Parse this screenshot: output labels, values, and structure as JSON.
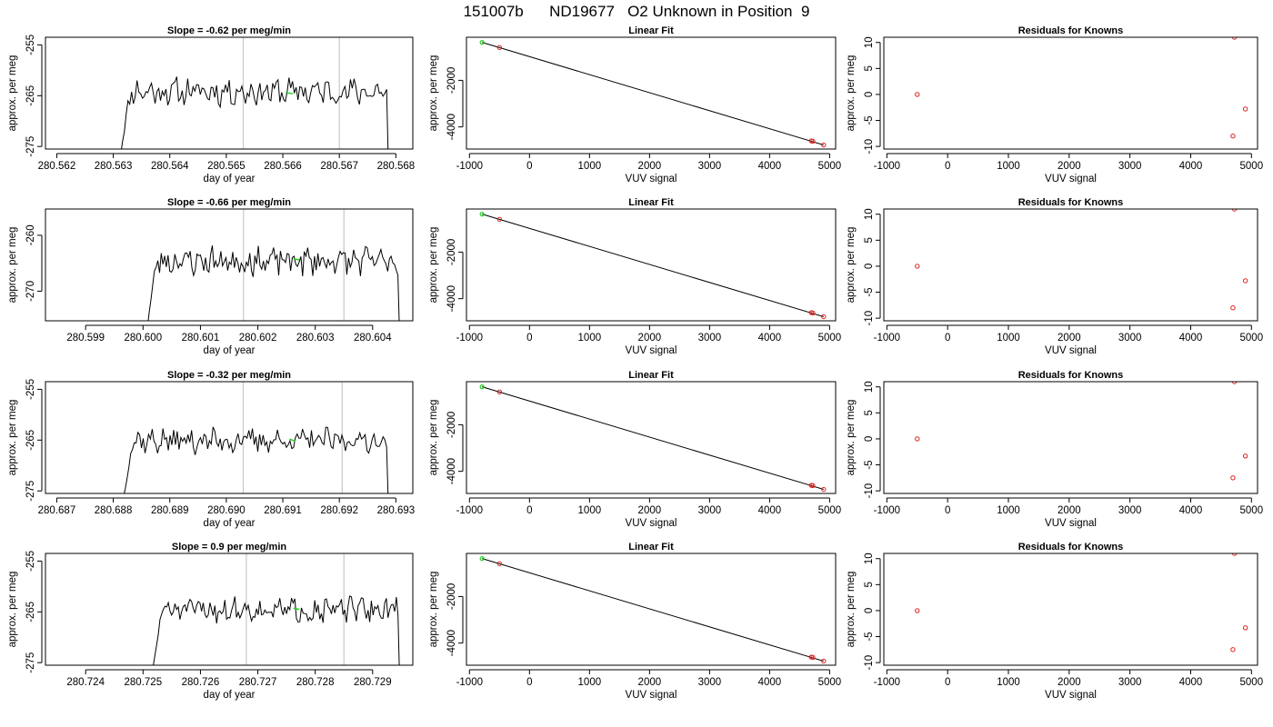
{
  "header": {
    "title": "151007b      ND19677   O2 Unknown in Position  9"
  },
  "colors": {
    "trace": "#000000",
    "known_points": "#e0201b",
    "unknown_points": "#1fd11f",
    "reference_lines": "#c8c8c8"
  },
  "chart_data": [
    {
      "type": "line",
      "title": "Slope =  -0.62  per meg/min",
      "xlabel": "day of year",
      "ylabel": "approx. per meg",
      "xlim": [
        280.5618,
        280.5683
      ],
      "ylim": [
        -275.5,
        -253.5
      ],
      "xticks": [
        "280.562",
        "280.563",
        "280.564",
        "280.565",
        "280.566",
        "280.567",
        "280.568"
      ],
      "yticks": [
        "-255",
        "-265",
        "-275"
      ],
      "reference_x": [
        280.5653,
        280.567
      ],
      "trace": {
        "start": 280.5631,
        "end": 280.5679,
        "level": -264.2,
        "noise": 1.7,
        "seed": 11
      },
      "unknown_segment": {
        "x": [
          280.56605,
          280.56618
        ],
        "y": [
          -264.4,
          -264.6
        ]
      }
    },
    {
      "type": "scatter",
      "title": "Linear Fit",
      "xlabel": "VUV signal",
      "ylabel": "approx. per meg",
      "xlim": [
        -1050,
        5100
      ],
      "ylim": [
        -4950,
        -150
      ],
      "xticks": [
        "-1000",
        "0",
        "1000",
        "2000",
        "3000",
        "4000",
        "5000"
      ],
      "yticks": [
        "-2000",
        "-4000"
      ],
      "fit_line": {
        "x": [
          -790,
          4900
        ],
        "y": [
          -370,
          -4775
        ]
      },
      "known_points": [
        {
          "x": -500,
          "y": -590
        },
        {
          "x": 4695,
          "y": -4600
        },
        {
          "x": 4720,
          "y": -4615
        },
        {
          "x": 4900,
          "y": -4775
        }
      ],
      "unknown_points": [
        {
          "x": -790,
          "y": -370
        }
      ]
    },
    {
      "type": "scatter",
      "title": "Residuals for Knowns",
      "xlabel": "VUV signal",
      "ylabel": "approx. per meg",
      "xlim": [
        -1050,
        5100
      ],
      "ylim": [
        -10.5,
        11
      ],
      "xticks": [
        "-1000",
        "0",
        "1000",
        "2000",
        "3000",
        "4000",
        "5000"
      ],
      "yticks": [
        "-10",
        "-5",
        "0",
        "5",
        "10"
      ],
      "known_points": [
        {
          "x": -500,
          "y": 0
        },
        {
          "x": 4695,
          "y": -8
        },
        {
          "x": 4720,
          "y": 11
        },
        {
          "x": 4900,
          "y": -2.8
        }
      ]
    },
    {
      "type": "line",
      "title": "Slope =  -0.66  per meg/min",
      "xlabel": "day of year",
      "ylabel": "approx. per meg",
      "xlim": [
        280.5983,
        280.6047
      ],
      "ylim": [
        -275.3,
        -255.3
      ],
      "xticks": [
        "280.599",
        "280.600",
        "280.601",
        "280.602",
        "280.603",
        "280.604"
      ],
      "yticks": [
        "-260",
        "-270"
      ],
      "reference_x": [
        280.60175,
        280.6035
      ],
      "trace": {
        "start": 280.60005,
        "end": 280.6045,
        "level": -264.6,
        "noise": 1.6,
        "seed": 23
      },
      "unknown_segment": {
        "x": [
          280.60262,
          280.60272
        ],
        "y": [
          -264.2,
          -264.4
        ]
      }
    },
    {
      "type": "scatter",
      "title": "Linear Fit",
      "xlabel": "VUV signal",
      "ylabel": "approx. per meg",
      "xlim": [
        -1050,
        5100
      ],
      "ylim": [
        -4950,
        -150
      ],
      "xticks": [
        "-1000",
        "0",
        "1000",
        "2000",
        "3000",
        "4000",
        "5000"
      ],
      "yticks": [
        "-2000",
        "-4000"
      ],
      "fit_line": {
        "x": [
          -790,
          4900
        ],
        "y": [
          -370,
          -4775
        ]
      },
      "known_points": [
        {
          "x": -500,
          "y": -590
        },
        {
          "x": 4695,
          "y": -4600
        },
        {
          "x": 4720,
          "y": -4615
        },
        {
          "x": 4900,
          "y": -4775
        }
      ],
      "unknown_points": [
        {
          "x": -790,
          "y": -370
        }
      ]
    },
    {
      "type": "scatter",
      "title": "Residuals for Knowns",
      "xlabel": "VUV signal",
      "ylabel": "approx. per meg",
      "xlim": [
        -1050,
        5100
      ],
      "ylim": [
        -10.5,
        11
      ],
      "xticks": [
        "-1000",
        "0",
        "1000",
        "2000",
        "3000",
        "4000",
        "5000"
      ],
      "yticks": [
        "-10",
        "-5",
        "0",
        "5",
        "10"
      ],
      "known_points": [
        {
          "x": -500,
          "y": 0
        },
        {
          "x": 4695,
          "y": -8
        },
        {
          "x": 4720,
          "y": 11
        },
        {
          "x": 4900,
          "y": -2.8
        }
      ]
    },
    {
      "type": "line",
      "title": "Slope =  -0.32  per meg/min",
      "xlabel": "day of year",
      "ylabel": "approx. per meg",
      "xlim": [
        280.6868,
        280.6933
      ],
      "ylim": [
        -275.5,
        -253.5
      ],
      "xticks": [
        "280.687",
        "280.688",
        "280.689",
        "280.690",
        "280.691",
        "280.692",
        "280.693"
      ],
      "yticks": [
        "-255",
        "-265",
        "-275"
      ],
      "reference_x": [
        280.6903,
        280.69205
      ],
      "trace": {
        "start": 280.68815,
        "end": 280.6929,
        "level": -265.1,
        "noise": 1.5,
        "seed": 37
      },
      "unknown_segment": {
        "x": [
          280.69112,
          280.69122
        ],
        "y": [
          -264.8,
          -265.2
        ]
      }
    },
    {
      "type": "scatter",
      "title": "Linear Fit",
      "xlabel": "VUV signal",
      "ylabel": "approx. per meg",
      "xlim": [
        -1050,
        5100
      ],
      "ylim": [
        -4950,
        -150
      ],
      "xticks": [
        "-1000",
        "0",
        "1000",
        "2000",
        "3000",
        "4000",
        "5000"
      ],
      "yticks": [
        "-2000",
        "-4000"
      ],
      "fit_line": {
        "x": [
          -790,
          4900
        ],
        "y": [
          -370,
          -4775
        ]
      },
      "known_points": [
        {
          "x": -500,
          "y": -590
        },
        {
          "x": 4695,
          "y": -4600
        },
        {
          "x": 4720,
          "y": -4615
        },
        {
          "x": 4900,
          "y": -4775
        }
      ],
      "unknown_points": [
        {
          "x": -790,
          "y": -370
        }
      ]
    },
    {
      "type": "scatter",
      "title": "Residuals for Knowns",
      "xlabel": "VUV signal",
      "ylabel": "approx. per meg",
      "xlim": [
        -1050,
        5100
      ],
      "ylim": [
        -10.5,
        11
      ],
      "xticks": [
        "-1000",
        "0",
        "1000",
        "2000",
        "3000",
        "4000",
        "5000"
      ],
      "yticks": [
        "-10",
        "-5",
        "0",
        "5",
        "10"
      ],
      "known_points": [
        {
          "x": -500,
          "y": 0
        },
        {
          "x": 4695,
          "y": -7.5
        },
        {
          "x": 4720,
          "y": 11
        },
        {
          "x": 4900,
          "y": -3.3
        }
      ]
    },
    {
      "type": "line",
      "title": "Slope =  0.9  per meg/min",
      "xlabel": "day of year",
      "ylabel": "approx. per meg",
      "xlim": [
        280.7233,
        280.7297
      ],
      "ylim": [
        -275.5,
        -253.5
      ],
      "xticks": [
        "280.724",
        "280.725",
        "280.726",
        "280.727",
        "280.728",
        "280.729"
      ],
      "yticks": [
        "-255",
        "-265",
        "-275"
      ],
      "reference_x": [
        280.7268,
        280.7285
      ],
      "trace": {
        "start": 280.72515,
        "end": 280.7295,
        "level": -264.6,
        "noise": 1.5,
        "seed": 51
      },
      "unknown_segment": {
        "x": [
          280.72762,
          280.72772
        ],
        "y": [
          -264.3,
          -264.5
        ]
      }
    },
    {
      "type": "scatter",
      "title": "Linear Fit",
      "xlabel": "VUV signal",
      "ylabel": "approx. per meg",
      "xlim": [
        -1050,
        5100
      ],
      "ylim": [
        -4950,
        -150
      ],
      "xticks": [
        "-1000",
        "0",
        "1000",
        "2000",
        "3000",
        "4000",
        "5000"
      ],
      "yticks": [
        "-2000",
        "-4000"
      ],
      "fit_line": {
        "x": [
          -790,
          4900
        ],
        "y": [
          -370,
          -4775
        ]
      },
      "known_points": [
        {
          "x": -500,
          "y": -590
        },
        {
          "x": 4695,
          "y": -4600
        },
        {
          "x": 4720,
          "y": -4615
        },
        {
          "x": 4900,
          "y": -4775
        }
      ],
      "unknown_points": [
        {
          "x": -790,
          "y": -370
        }
      ]
    },
    {
      "type": "scatter",
      "title": "Residuals for Knowns",
      "xlabel": "VUV signal",
      "ylabel": "approx. per meg",
      "xlim": [
        -1050,
        5100
      ],
      "ylim": [
        -10.5,
        11
      ],
      "xticks": [
        "-1000",
        "0",
        "1000",
        "2000",
        "3000",
        "4000",
        "5000"
      ],
      "yticks": [
        "-10",
        "-5",
        "0",
        "5",
        "10"
      ],
      "known_points": [
        {
          "x": -500,
          "y": 0
        },
        {
          "x": 4695,
          "y": -7.5
        },
        {
          "x": 4720,
          "y": 11
        },
        {
          "x": 4900,
          "y": -3.3
        }
      ]
    }
  ]
}
